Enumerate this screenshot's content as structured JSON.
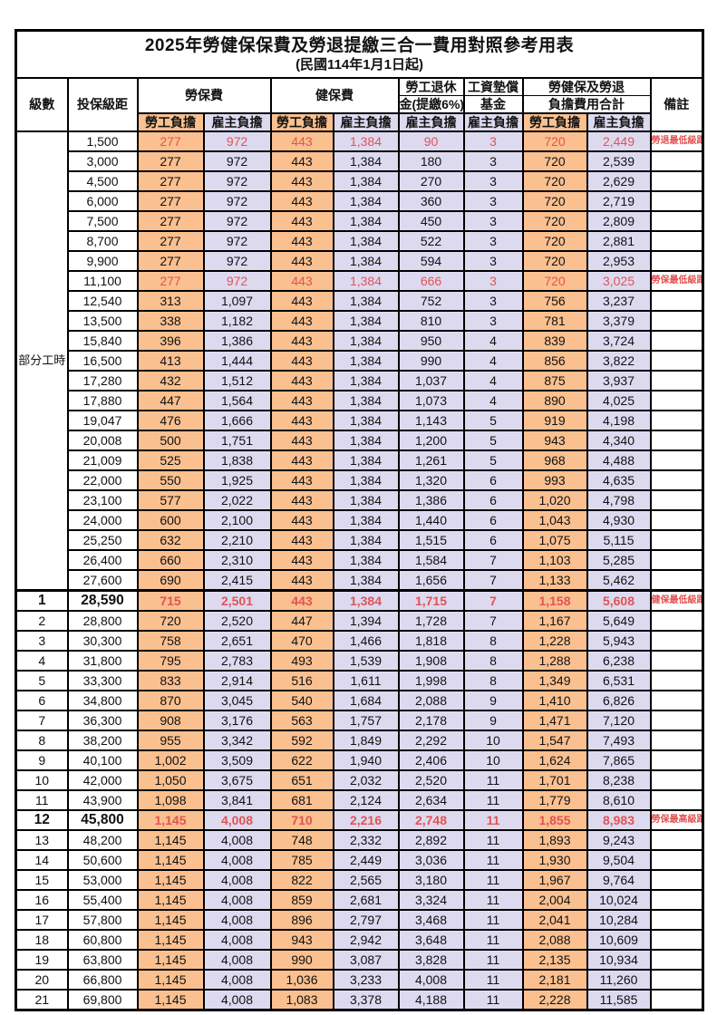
{
  "title": "2025年勞健保保費及勞退提繳三合一費用對照參考用表",
  "subtitle": "(民國114年1月1日起)",
  "colors": {
    "employee_column_bg": "#FAC090",
    "employer_column_bg": "#DDDAF0",
    "highlight_text": "#E25353",
    "grid_line": "#000000"
  },
  "header": {
    "level": "級數",
    "bracket": "投保級距",
    "labor_insurance": "勞保費",
    "health_insurance": "健保費",
    "pension_line1": "勞工退休",
    "pension_line2": "金(提繳6%)",
    "wage_fund_line1": "工資墊償",
    "wage_fund_line2": "基金",
    "total_line1": "勞健保及勞退",
    "total_line2": "負擔費用合計",
    "remark": "備註",
    "employee_share": "勞工負擔",
    "employer_share": "雇主負擔"
  },
  "part_time_label": "部分工時",
  "part_time_rowspan": 23,
  "columns_order": [
    "level",
    "bracket",
    "labor_employee",
    "labor_employer",
    "health_employee",
    "health_employer",
    "pension_employer",
    "fund_employer",
    "total_employee",
    "total_employer",
    "remark"
  ],
  "red_rows": [
    0,
    7,
    23,
    34
  ],
  "emphasis_rows": [
    23,
    34
  ],
  "thick_top_rows": [
    23
  ],
  "rows": [
    [
      "",
      "1,500",
      "277",
      "972",
      "443",
      "1,384",
      "90",
      "3",
      "720",
      "2,449",
      "勞退最低級距"
    ],
    [
      "",
      "3,000",
      "277",
      "972",
      "443",
      "1,384",
      "180",
      "3",
      "720",
      "2,539",
      ""
    ],
    [
      "",
      "4,500",
      "277",
      "972",
      "443",
      "1,384",
      "270",
      "3",
      "720",
      "2,629",
      ""
    ],
    [
      "",
      "6,000",
      "277",
      "972",
      "443",
      "1,384",
      "360",
      "3",
      "720",
      "2,719",
      ""
    ],
    [
      "",
      "7,500",
      "277",
      "972",
      "443",
      "1,384",
      "450",
      "3",
      "720",
      "2,809",
      ""
    ],
    [
      "",
      "8,700",
      "277",
      "972",
      "443",
      "1,384",
      "522",
      "3",
      "720",
      "2,881",
      ""
    ],
    [
      "",
      "9,900",
      "277",
      "972",
      "443",
      "1,384",
      "594",
      "3",
      "720",
      "2,953",
      ""
    ],
    [
      "",
      "11,100",
      "277",
      "972",
      "443",
      "1,384",
      "666",
      "3",
      "720",
      "3,025",
      "勞保最低級距"
    ],
    [
      "",
      "12,540",
      "313",
      "1,097",
      "443",
      "1,384",
      "752",
      "3",
      "756",
      "3,237",
      ""
    ],
    [
      "",
      "13,500",
      "338",
      "1,182",
      "443",
      "1,384",
      "810",
      "3",
      "781",
      "3,379",
      ""
    ],
    [
      "",
      "15,840",
      "396",
      "1,386",
      "443",
      "1,384",
      "950",
      "4",
      "839",
      "3,724",
      ""
    ],
    [
      "",
      "16,500",
      "413",
      "1,444",
      "443",
      "1,384",
      "990",
      "4",
      "856",
      "3,822",
      ""
    ],
    [
      "",
      "17,280",
      "432",
      "1,512",
      "443",
      "1,384",
      "1,037",
      "4",
      "875",
      "3,937",
      ""
    ],
    [
      "",
      "17,880",
      "447",
      "1,564",
      "443",
      "1,384",
      "1,073",
      "4",
      "890",
      "4,025",
      ""
    ],
    [
      "",
      "19,047",
      "476",
      "1,666",
      "443",
      "1,384",
      "1,143",
      "5",
      "919",
      "4,198",
      ""
    ],
    [
      "",
      "20,008",
      "500",
      "1,751",
      "443",
      "1,384",
      "1,200",
      "5",
      "943",
      "4,340",
      ""
    ],
    [
      "",
      "21,009",
      "525",
      "1,838",
      "443",
      "1,384",
      "1,261",
      "5",
      "968",
      "4,488",
      ""
    ],
    [
      "",
      "22,000",
      "550",
      "1,925",
      "443",
      "1,384",
      "1,320",
      "6",
      "993",
      "4,635",
      ""
    ],
    [
      "",
      "23,100",
      "577",
      "2,022",
      "443",
      "1,384",
      "1,386",
      "6",
      "1,020",
      "4,798",
      ""
    ],
    [
      "",
      "24,000",
      "600",
      "2,100",
      "443",
      "1,384",
      "1,440",
      "6",
      "1,043",
      "4,930",
      ""
    ],
    [
      "",
      "25,250",
      "632",
      "2,210",
      "443",
      "1,384",
      "1,515",
      "6",
      "1,075",
      "5,115",
      ""
    ],
    [
      "",
      "26,400",
      "660",
      "2,310",
      "443",
      "1,384",
      "1,584",
      "7",
      "1,103",
      "5,285",
      ""
    ],
    [
      "",
      "27,600",
      "690",
      "2,415",
      "443",
      "1,384",
      "1,656",
      "7",
      "1,133",
      "5,462",
      ""
    ],
    [
      "1",
      "28,590",
      "715",
      "2,501",
      "443",
      "1,384",
      "1,715",
      "7",
      "1,158",
      "5,608",
      "健保最低級距"
    ],
    [
      "2",
      "28,800",
      "720",
      "2,520",
      "447",
      "1,394",
      "1,728",
      "7",
      "1,167",
      "5,649",
      ""
    ],
    [
      "3",
      "30,300",
      "758",
      "2,651",
      "470",
      "1,466",
      "1,818",
      "8",
      "1,228",
      "5,943",
      ""
    ],
    [
      "4",
      "31,800",
      "795",
      "2,783",
      "493",
      "1,539",
      "1,908",
      "8",
      "1,288",
      "6,238",
      ""
    ],
    [
      "5",
      "33,300",
      "833",
      "2,914",
      "516",
      "1,611",
      "1,998",
      "8",
      "1,349",
      "6,531",
      ""
    ],
    [
      "6",
      "34,800",
      "870",
      "3,045",
      "540",
      "1,684",
      "2,088",
      "9",
      "1,410",
      "6,826",
      ""
    ],
    [
      "7",
      "36,300",
      "908",
      "3,176",
      "563",
      "1,757",
      "2,178",
      "9",
      "1,471",
      "7,120",
      ""
    ],
    [
      "8",
      "38,200",
      "955",
      "3,342",
      "592",
      "1,849",
      "2,292",
      "10",
      "1,547",
      "7,493",
      ""
    ],
    [
      "9",
      "40,100",
      "1,002",
      "3,509",
      "622",
      "1,940",
      "2,406",
      "10",
      "1,624",
      "7,865",
      ""
    ],
    [
      "10",
      "42,000",
      "1,050",
      "3,675",
      "651",
      "2,032",
      "2,520",
      "11",
      "1,701",
      "8,238",
      ""
    ],
    [
      "11",
      "43,900",
      "1,098",
      "3,841",
      "681",
      "2,124",
      "2,634",
      "11",
      "1,779",
      "8,610",
      ""
    ],
    [
      "12",
      "45,800",
      "1,145",
      "4,008",
      "710",
      "2,216",
      "2,748",
      "11",
      "1,855",
      "8,983",
      "勞保最高級距"
    ],
    [
      "13",
      "48,200",
      "1,145",
      "4,008",
      "748",
      "2,332",
      "2,892",
      "11",
      "1,893",
      "9,243",
      ""
    ],
    [
      "14",
      "50,600",
      "1,145",
      "4,008",
      "785",
      "2,449",
      "3,036",
      "11",
      "1,930",
      "9,504",
      ""
    ],
    [
      "15",
      "53,000",
      "1,145",
      "4,008",
      "822",
      "2,565",
      "3,180",
      "11",
      "1,967",
      "9,764",
      ""
    ],
    [
      "16",
      "55,400",
      "1,145",
      "4,008",
      "859",
      "2,681",
      "3,324",
      "11",
      "2,004",
      "10,024",
      ""
    ],
    [
      "17",
      "57,800",
      "1,145",
      "4,008",
      "896",
      "2,797",
      "3,468",
      "11",
      "2,041",
      "10,284",
      ""
    ],
    [
      "18",
      "60,800",
      "1,145",
      "4,008",
      "943",
      "2,942",
      "3,648",
      "11",
      "2,088",
      "10,609",
      ""
    ],
    [
      "19",
      "63,800",
      "1,145",
      "4,008",
      "990",
      "3,087",
      "3,828",
      "11",
      "2,135",
      "10,934",
      ""
    ],
    [
      "20",
      "66,800",
      "1,145",
      "4,008",
      "1,036",
      "3,233",
      "4,008",
      "11",
      "2,181",
      "11,260",
      ""
    ],
    [
      "21",
      "69,800",
      "1,145",
      "4,008",
      "1,083",
      "3,378",
      "4,188",
      "11",
      "2,228",
      "11,585",
      ""
    ]
  ]
}
